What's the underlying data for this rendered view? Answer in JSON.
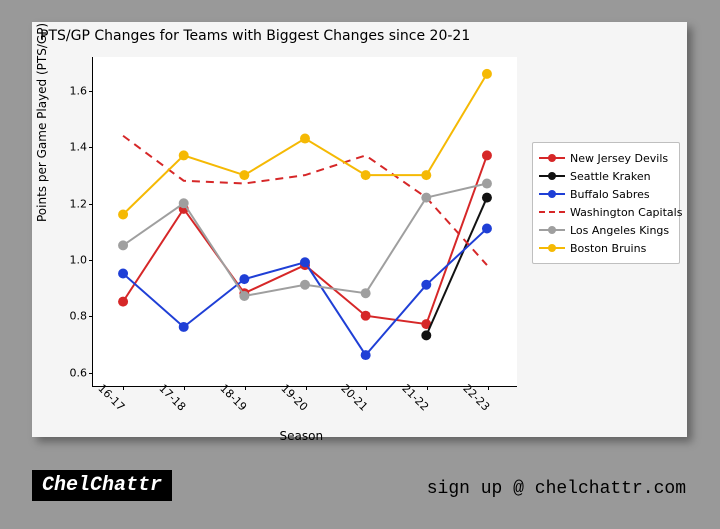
{
  "chart": {
    "type": "line",
    "title": "PTS/GP Changes for Teams with Biggest Changes since 20-21",
    "title_fontsize": 14,
    "xlabel": "Season",
    "ylabel": "Points per Game Played (PTS/GP)",
    "label_fontsize": 12,
    "tick_fontsize": 11,
    "background_color": "#f5f5f5",
    "plot_background": "#ffffff",
    "categories": [
      "16-17",
      "17-18",
      "18-19",
      "19-20",
      "20-21",
      "21-22",
      "22-23"
    ],
    "ylim": [
      0.55,
      1.72
    ],
    "yticks": [
      0.6,
      0.8,
      1.0,
      1.2,
      1.4,
      1.6
    ],
    "xtick_rotation": 45,
    "series": [
      {
        "name": "New Jersey Devils",
        "color": "#d62728",
        "marker": "circle",
        "dash": "solid",
        "linewidth": 2,
        "values": [
          0.85,
          1.18,
          0.88,
          0.98,
          0.8,
          0.77,
          1.37
        ]
      },
      {
        "name": "Seattle Kraken",
        "color": "#121212",
        "marker": "circle",
        "dash": "solid",
        "linewidth": 2,
        "values": [
          null,
          null,
          null,
          null,
          null,
          0.73,
          1.22
        ]
      },
      {
        "name": "Buffalo Sabres",
        "color": "#1f3fd6",
        "marker": "circle",
        "dash": "solid",
        "linewidth": 2,
        "values": [
          0.95,
          0.76,
          0.93,
          0.99,
          0.66,
          0.91,
          1.11
        ]
      },
      {
        "name": "Washington Capitals",
        "color": "#d62728",
        "marker": "none",
        "dash": "dashed",
        "linewidth": 2,
        "values": [
          1.44,
          1.28,
          1.27,
          1.3,
          1.37,
          1.22,
          0.98
        ]
      },
      {
        "name": "Los Angeles Kings",
        "color": "#9f9f9f",
        "marker": "circle",
        "dash": "solid",
        "linewidth": 2,
        "values": [
          1.05,
          1.2,
          0.87,
          0.91,
          0.88,
          1.22,
          1.27
        ]
      },
      {
        "name": "Boston Bruins",
        "color": "#f5b904",
        "marker": "circle",
        "dash": "solid",
        "linewidth": 2,
        "values": [
          1.16,
          1.37,
          1.3,
          1.43,
          1.3,
          1.3,
          1.66
        ]
      }
    ],
    "legend_position": "right",
    "marker_size": 5
  },
  "footer": {
    "badge": "ChelChattr",
    "signup": "sign up @ chelchattr.com"
  }
}
